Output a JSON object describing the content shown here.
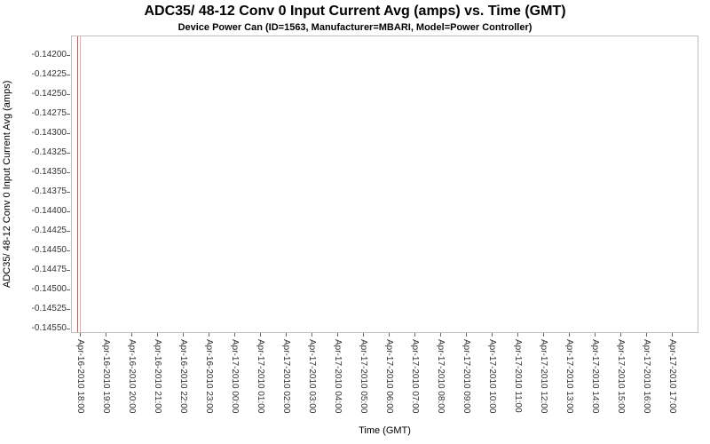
{
  "chart_data": {
    "type": "line",
    "title": "ADC35/ 48-12 Conv 0 Input Current Avg (amps) vs. Time (GMT)",
    "subtitle": "Device Power Can (ID=1563, Manufacturer=MBARI, Model=Power Controller)",
    "xlabel": "Time (GMT)",
    "ylabel": "ADC35/ 48-12 Conv 0 Input Current Avg (amps)",
    "grid": false,
    "legend": "none",
    "ylim": [
      -0.1456,
      -0.1419
    ],
    "y_ticks": [
      "-0.14200",
      "-0.14225",
      "-0.14250",
      "-0.14275",
      "-0.14300",
      "-0.14325",
      "-0.14350",
      "-0.14375",
      "-0.14400",
      "-0.14425",
      "-0.14450",
      "-0.14475",
      "-0.14500",
      "-0.14525",
      "-0.14550"
    ],
    "x_ticks": [
      "Apr-16-2010 18:00",
      "Apr-16-2010 19:00",
      "Apr-16-2010 20:00",
      "Apr-16-2010 21:00",
      "Apr-16-2010 22:00",
      "Apr-16-2010 23:00",
      "Apr-17-2010 00:00",
      "Apr-17-2010 01:00",
      "Apr-17-2010 02:00",
      "Apr-17-2010 03:00",
      "Apr-17-2010 04:00",
      "Apr-17-2010 05:00",
      "Apr-17-2010 06:00",
      "Apr-17-2010 07:00",
      "Apr-17-2010 08:00",
      "Apr-17-2010 09:00",
      "Apr-17-2010 10:00",
      "Apr-17-2010 11:00",
      "Apr-17-2010 12:00",
      "Apr-17-2010 13:00",
      "Apr-17-2010 14:00",
      "Apr-17-2010 15:00",
      "Apr-17-2010 16:00",
      "Apr-17-2010 17:00"
    ],
    "series": [
      {
        "name": "ADC35/ 48-12 Conv 0 Input Current Avg (amps)",
        "note": "all data confined to a narrow time window near Apr-16-2010 18:00; renders as vertical spike spanning the full visible y-range"
      }
    ],
    "spikes": [
      {
        "x_fraction": 0.01,
        "color": "#d9534f"
      },
      {
        "x_fraction": 0.0135,
        "color": "#f2a9a2"
      }
    ]
  }
}
